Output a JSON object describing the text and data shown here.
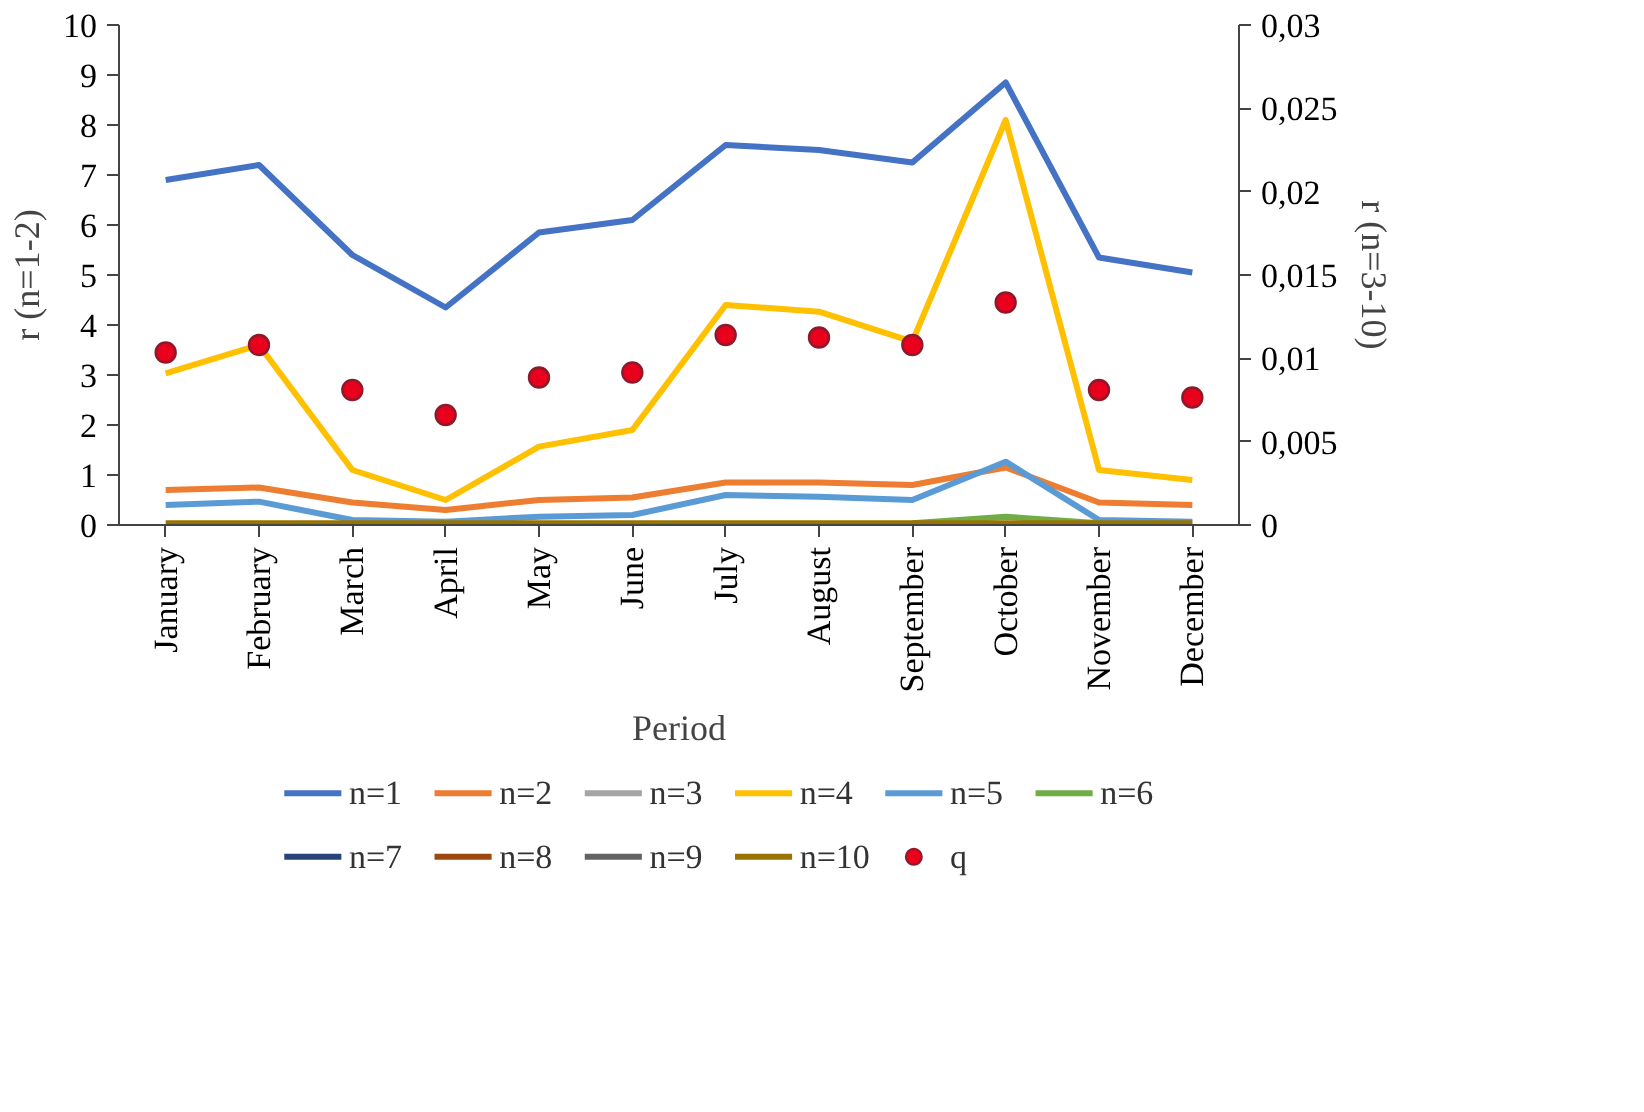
{
  "chart_data": {
    "type": "line",
    "xlabel": "Period",
    "ylabel": "r (n=1-2)",
    "y2label": "r (n=3-10)",
    "categories": [
      "January",
      "February",
      "March",
      "April",
      "May",
      "June",
      "July",
      "August",
      "September",
      "October",
      "November",
      "December"
    ],
    "ylim": [
      0,
      10
    ],
    "yticks": [
      0,
      1,
      2,
      3,
      4,
      5,
      6,
      7,
      8,
      9,
      10
    ],
    "y2lim": [
      0,
      0.03
    ],
    "y2ticks": [
      0,
      {
        "value": 0.005,
        "label": "0,005"
      },
      {
        "value": 0.01,
        "label": "0,01"
      },
      {
        "value": 0.015,
        "label": "0,015"
      },
      {
        "value": 0.02,
        "label": "0,02"
      },
      {
        "value": 0.025,
        "label": "0,025"
      },
      {
        "value": 0.03,
        "label": "0,03"
      }
    ],
    "grid": false,
    "legend": "bottom",
    "line_style": "solid",
    "series": [
      {
        "name": "n=1",
        "color": "#4472c4",
        "values": [
          6.9,
          7.2,
          5.4,
          4.35,
          5.85,
          6.1,
          7.6,
          7.5,
          7.25,
          8.85,
          5.35,
          5.05
        ]
      },
      {
        "name": "n=2",
        "color": "#ed7d31",
        "values": [
          0.7,
          0.75,
          0.45,
          0.3,
          0.5,
          0.55,
          0.85,
          0.85,
          0.8,
          1.15,
          0.45,
          0.4
        ]
      },
      {
        "name": "n=3",
        "color": "#a5a5a5",
        "axis": "y2",
        "values": [
          null,
          null,
          null,
          null,
          null,
          null,
          null,
          null,
          null,
          null,
          null,
          null
        ]
      },
      {
        "name": "n=4",
        "color": "#ffc000",
        "axis": "y2",
        "values": [
          0.0091,
          0.0108,
          0.0033,
          0.0015,
          0.0047,
          0.0057,
          0.0132,
          0.0128,
          0.011,
          0.0243,
          0.0033,
          0.0027
        ]
      },
      {
        "name": "n=5",
        "color": "#5b9bd5",
        "axis": "y2",
        "values": [
          0.0012,
          0.0014,
          0.0003,
          0.0002,
          0.0005,
          0.0006,
          0.0018,
          0.0017,
          0.0015,
          0.0038,
          0.0003,
          0.0002
        ]
      },
      {
        "name": "n=6",
        "color": "#70ad47",
        "axis": "y2",
        "values": [
          null,
          null,
          null,
          null,
          null,
          null,
          null,
          null,
          0.0001,
          0.0005,
          0.0001,
          null
        ]
      },
      {
        "name": "n=7",
        "color": "#264478",
        "axis": "y2",
        "values": [
          null,
          null,
          null,
          null,
          null,
          null,
          null,
          null,
          null,
          null,
          null,
          null
        ]
      },
      {
        "name": "n=8",
        "color": "#9e480e",
        "axis": "y2",
        "values": [
          null,
          null,
          null,
          null,
          null,
          null,
          null,
          null,
          null,
          null,
          null,
          null
        ]
      },
      {
        "name": "n=9",
        "color": "#636363",
        "axis": "y2",
        "values": [
          null,
          null,
          null,
          null,
          null,
          null,
          null,
          null,
          null,
          null,
          null,
          null
        ]
      },
      {
        "name": "n=10",
        "color": "#997300",
        "axis": "y2",
        "values": [
          0.0001,
          0.0001,
          0.0001,
          0.0001,
          0.0001,
          0.0001,
          0.0001,
          0.0001,
          0.0001,
          0.0001,
          0.0001,
          0.0001
        ]
      },
      {
        "name": "q",
        "type": "scatter",
        "marker": "circle",
        "color": "#e8001c",
        "values": [
          3.45,
          3.6,
          2.7,
          2.2,
          2.95,
          3.05,
          3.8,
          3.75,
          3.6,
          4.45,
          2.7,
          2.55
        ]
      }
    ]
  }
}
